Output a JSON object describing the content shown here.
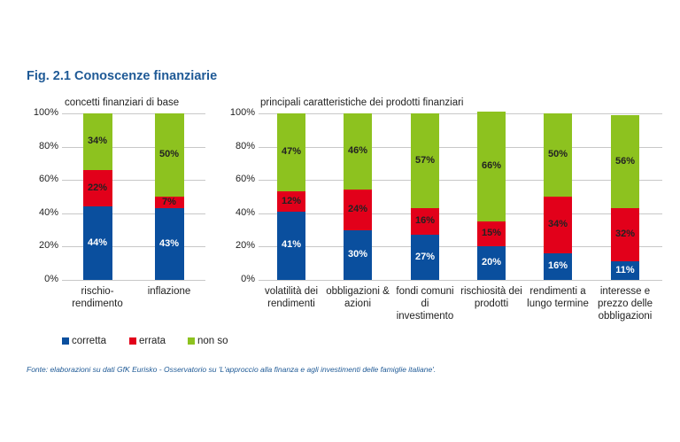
{
  "title": "Fig. 2.1 Conoscenze finanziarie",
  "source": "Fonte: elaborazioni su dati GfK Eurisko - Osservatorio su 'L'approccio alla finanza e agli investimenti delle famiglie italiane'.",
  "legend": [
    {
      "name": "corretta",
      "color": "#0a4f9e"
    },
    {
      "name": "errata",
      "color": "#e2001a"
    },
    {
      "name": "non so",
      "color": "#8dc21f"
    }
  ],
  "chart_data": [
    {
      "type": "bar",
      "stacked": true,
      "title": "concetti finanziari di base",
      "categories": [
        "rischio-rendimento",
        "inflazione"
      ],
      "series": [
        {
          "name": "corretta",
          "values": [
            44,
            43
          ]
        },
        {
          "name": "errata",
          "values": [
            22,
            7
          ]
        },
        {
          "name": "non so",
          "values": [
            34,
            50
          ]
        }
      ],
      "ylim": [
        0,
        100
      ],
      "yticks": [
        "0%",
        "20%",
        "40%",
        "60%",
        "80%",
        "100%"
      ],
      "grid": true,
      "legend": "bottom"
    },
    {
      "type": "bar",
      "stacked": true,
      "title": "principali caratteristiche dei prodotti finanziari",
      "categories": [
        "volatilità dei rendimenti",
        "obbligazioni & azioni",
        "fondi comuni di investimento",
        "rischiosità dei prodotti",
        "rendimenti a lungo termine",
        "interesse e prezzo delle obbligazioni"
      ],
      "series": [
        {
          "name": "corretta",
          "values": [
            41,
            30,
            27,
            20,
            16,
            11
          ]
        },
        {
          "name": "errata",
          "values": [
            12,
            24,
            16,
            15,
            34,
            32
          ]
        },
        {
          "name": "non so",
          "values": [
            47,
            46,
            57,
            66,
            50,
            56
          ]
        }
      ],
      "ylim": [
        0,
        100
      ],
      "yticks": [
        "0%",
        "20%",
        "40%",
        "60%",
        "80%",
        "100%"
      ],
      "grid": true,
      "legend": "bottom"
    }
  ]
}
